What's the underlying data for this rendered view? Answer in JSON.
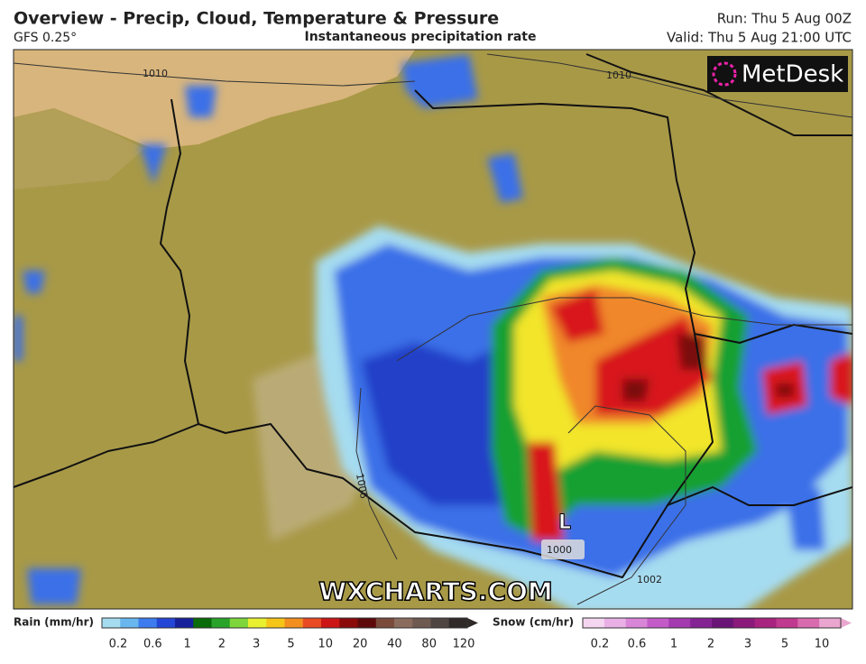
{
  "header": {
    "title": "Overview - Precip, Cloud, Temperature & Pressure",
    "model": "GFS 0.25°",
    "subtitle": "Instantaneous precipitation rate",
    "run": "Run: Thu 5 Aug 00Z",
    "valid": "Valid: Thu 5 Aug 21:00 UTC"
  },
  "map": {
    "logo": "MetDesk",
    "watermark": "WXCHARTS.COM",
    "low_label": "L",
    "isobars": [
      "1010",
      "1010",
      "1006",
      "1000",
      "1002"
    ]
  },
  "legend": {
    "rain": {
      "title": "Rain (mm/hr)",
      "ticks": [
        "0.2",
        "0.6",
        "1",
        "2",
        "3",
        "5",
        "10",
        "20",
        "40",
        "80",
        "120"
      ]
    },
    "snow": {
      "title": "Snow (cm/hr)",
      "ticks": [
        "0.2",
        "0.6",
        "1",
        "2",
        "3",
        "5",
        "10"
      ]
    }
  }
}
